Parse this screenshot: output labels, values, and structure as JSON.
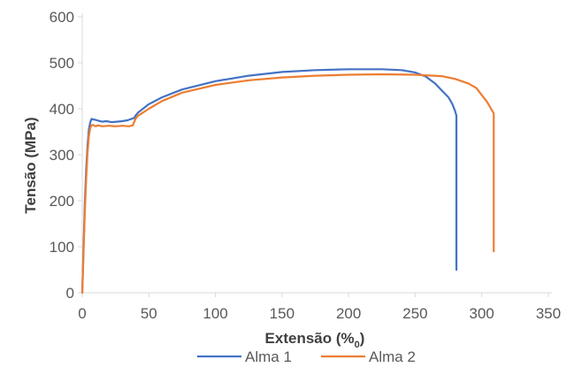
{
  "chart_data": {
    "type": "line",
    "xlabel": "Extensão (%",
    "xlabel_subscript": "0",
    "xlabel_close": ")",
    "ylabel": "Tensão (MPa)",
    "xlim": [
      0,
      350
    ],
    "ylim": [
      0,
      600
    ],
    "xticks": [
      0,
      50,
      100,
      150,
      200,
      250,
      300,
      350
    ],
    "yticks": [
      0,
      100,
      200,
      300,
      400,
      500,
      600
    ],
    "grid": false,
    "legend_position": "bottom",
    "series": [
      {
        "name": "Alma 1",
        "color": "#4472C4",
        "x": [
          0,
          1,
          2,
          3,
          4,
          5,
          6,
          7,
          8,
          10,
          12,
          15,
          18,
          22,
          26,
          30,
          34,
          37,
          39,
          40,
          42,
          50,
          60,
          75,
          100,
          125,
          150,
          175,
          200,
          225,
          240,
          250,
          258,
          265,
          270,
          275,
          278,
          280,
          281,
          281
        ],
        "y": [
          0,
          100,
          200,
          270,
          320,
          355,
          370,
          378,
          377,
          376,
          374,
          372,
          373,
          371,
          372,
          373,
          375,
          378,
          380,
          385,
          392,
          410,
          425,
          442,
          460,
          472,
          480,
          484,
          486,
          486,
          484,
          479,
          470,
          455,
          440,
          425,
          410,
          395,
          385,
          50
        ]
      },
      {
        "name": "Alma 2",
        "color": "#ED7D31",
        "x": [
          0,
          1,
          2,
          3,
          4,
          5,
          6,
          7,
          8,
          10,
          12,
          15,
          20,
          25,
          30,
          35,
          38,
          40,
          42,
          50,
          60,
          75,
          100,
          125,
          150,
          175,
          200,
          225,
          250,
          270,
          280,
          290,
          296,
          300,
          304,
          307,
          309,
          309
        ],
        "y": [
          0,
          90,
          180,
          250,
          305,
          340,
          358,
          364,
          365,
          362,
          364,
          362,
          363,
          362,
          363,
          362,
          364,
          378,
          385,
          400,
          417,
          435,
          452,
          462,
          468,
          472,
          474,
          475,
          474,
          471,
          465,
          455,
          445,
          430,
          415,
          400,
          390,
          90
        ]
      }
    ]
  }
}
